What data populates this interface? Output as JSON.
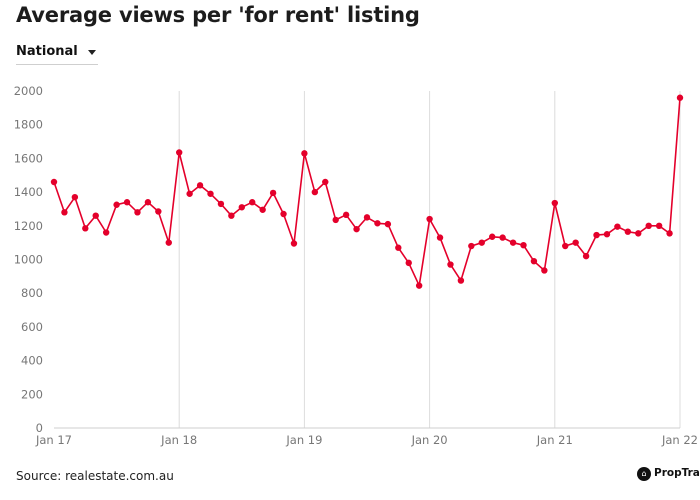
{
  "title": "Average views per 'for rent' listing",
  "region_selector": {
    "value": "National"
  },
  "chart_data": {
    "type": "line",
    "title": "Average views per 'for rent' listing",
    "xlabel": "",
    "ylabel": "",
    "ylim": [
      0,
      2000
    ],
    "yticks": [
      0,
      200,
      400,
      600,
      800,
      1000,
      1200,
      1400,
      1600,
      1800,
      2000
    ],
    "xticks": [
      "Jan 17",
      "Jan 18",
      "Jan 19",
      "Jan 20",
      "Jan 21",
      "Jan 22"
    ],
    "grid": "vertical at year ticks",
    "legend": "none",
    "color": "#e4002b",
    "series": [
      {
        "x": [
          "Jan 17",
          "Feb 17",
          "Mar 17",
          "Apr 17",
          "May 17",
          "Jun 17",
          "Jul 17",
          "Aug 17",
          "Sep 17",
          "Oct 17",
          "Nov 17",
          "Dec 17",
          "Jan 18",
          "Feb 18",
          "Mar 18",
          "Apr 18",
          "May 18",
          "Jun 18",
          "Jul 18",
          "Aug 18",
          "Sep 18",
          "Oct 18",
          "Nov 18",
          "Dec 18",
          "Jan 19",
          "Feb 19",
          "Mar 19",
          "Apr 19",
          "May 19",
          "Jun 19",
          "Jul 19",
          "Aug 19",
          "Sep 19",
          "Oct 19",
          "Nov 19",
          "Dec 19",
          "Jan 20",
          "Feb 20",
          "Mar 20",
          "Apr 20",
          "May 20",
          "Jun 20",
          "Jul 20",
          "Aug 20",
          "Sep 20",
          "Oct 20",
          "Nov 20",
          "Dec 20",
          "Jan 21",
          "Feb 21",
          "Mar 21",
          "Apr 21",
          "May 21",
          "Jun 21",
          "Jul 21",
          "Aug 21",
          "Sep 21",
          "Oct 21",
          "Nov 21",
          "Dec 21",
          "Jan 22"
        ],
        "values": [
          1460,
          1280,
          1370,
          1185,
          1260,
          1160,
          1325,
          1340,
          1280,
          1340,
          1285,
          1100,
          1635,
          1390,
          1440,
          1390,
          1330,
          1260,
          1310,
          1340,
          1295,
          1395,
          1270,
          1095,
          1630,
          1400,
          1460,
          1235,
          1265,
          1180,
          1250,
          1215,
          1210,
          1070,
          980,
          845,
          1240,
          1130,
          970,
          875,
          1080,
          1100,
          1135,
          1130,
          1100,
          1085,
          990,
          935,
          1335,
          1080,
          1100,
          1020,
          1145,
          1150,
          1195,
          1165,
          1155,
          1200,
          1200,
          1155,
          1960
        ]
      }
    ]
  },
  "footer": {
    "source": "Source: realestate.com.au",
    "brand": "PropTrack",
    "brand_icon": "house-icon"
  }
}
